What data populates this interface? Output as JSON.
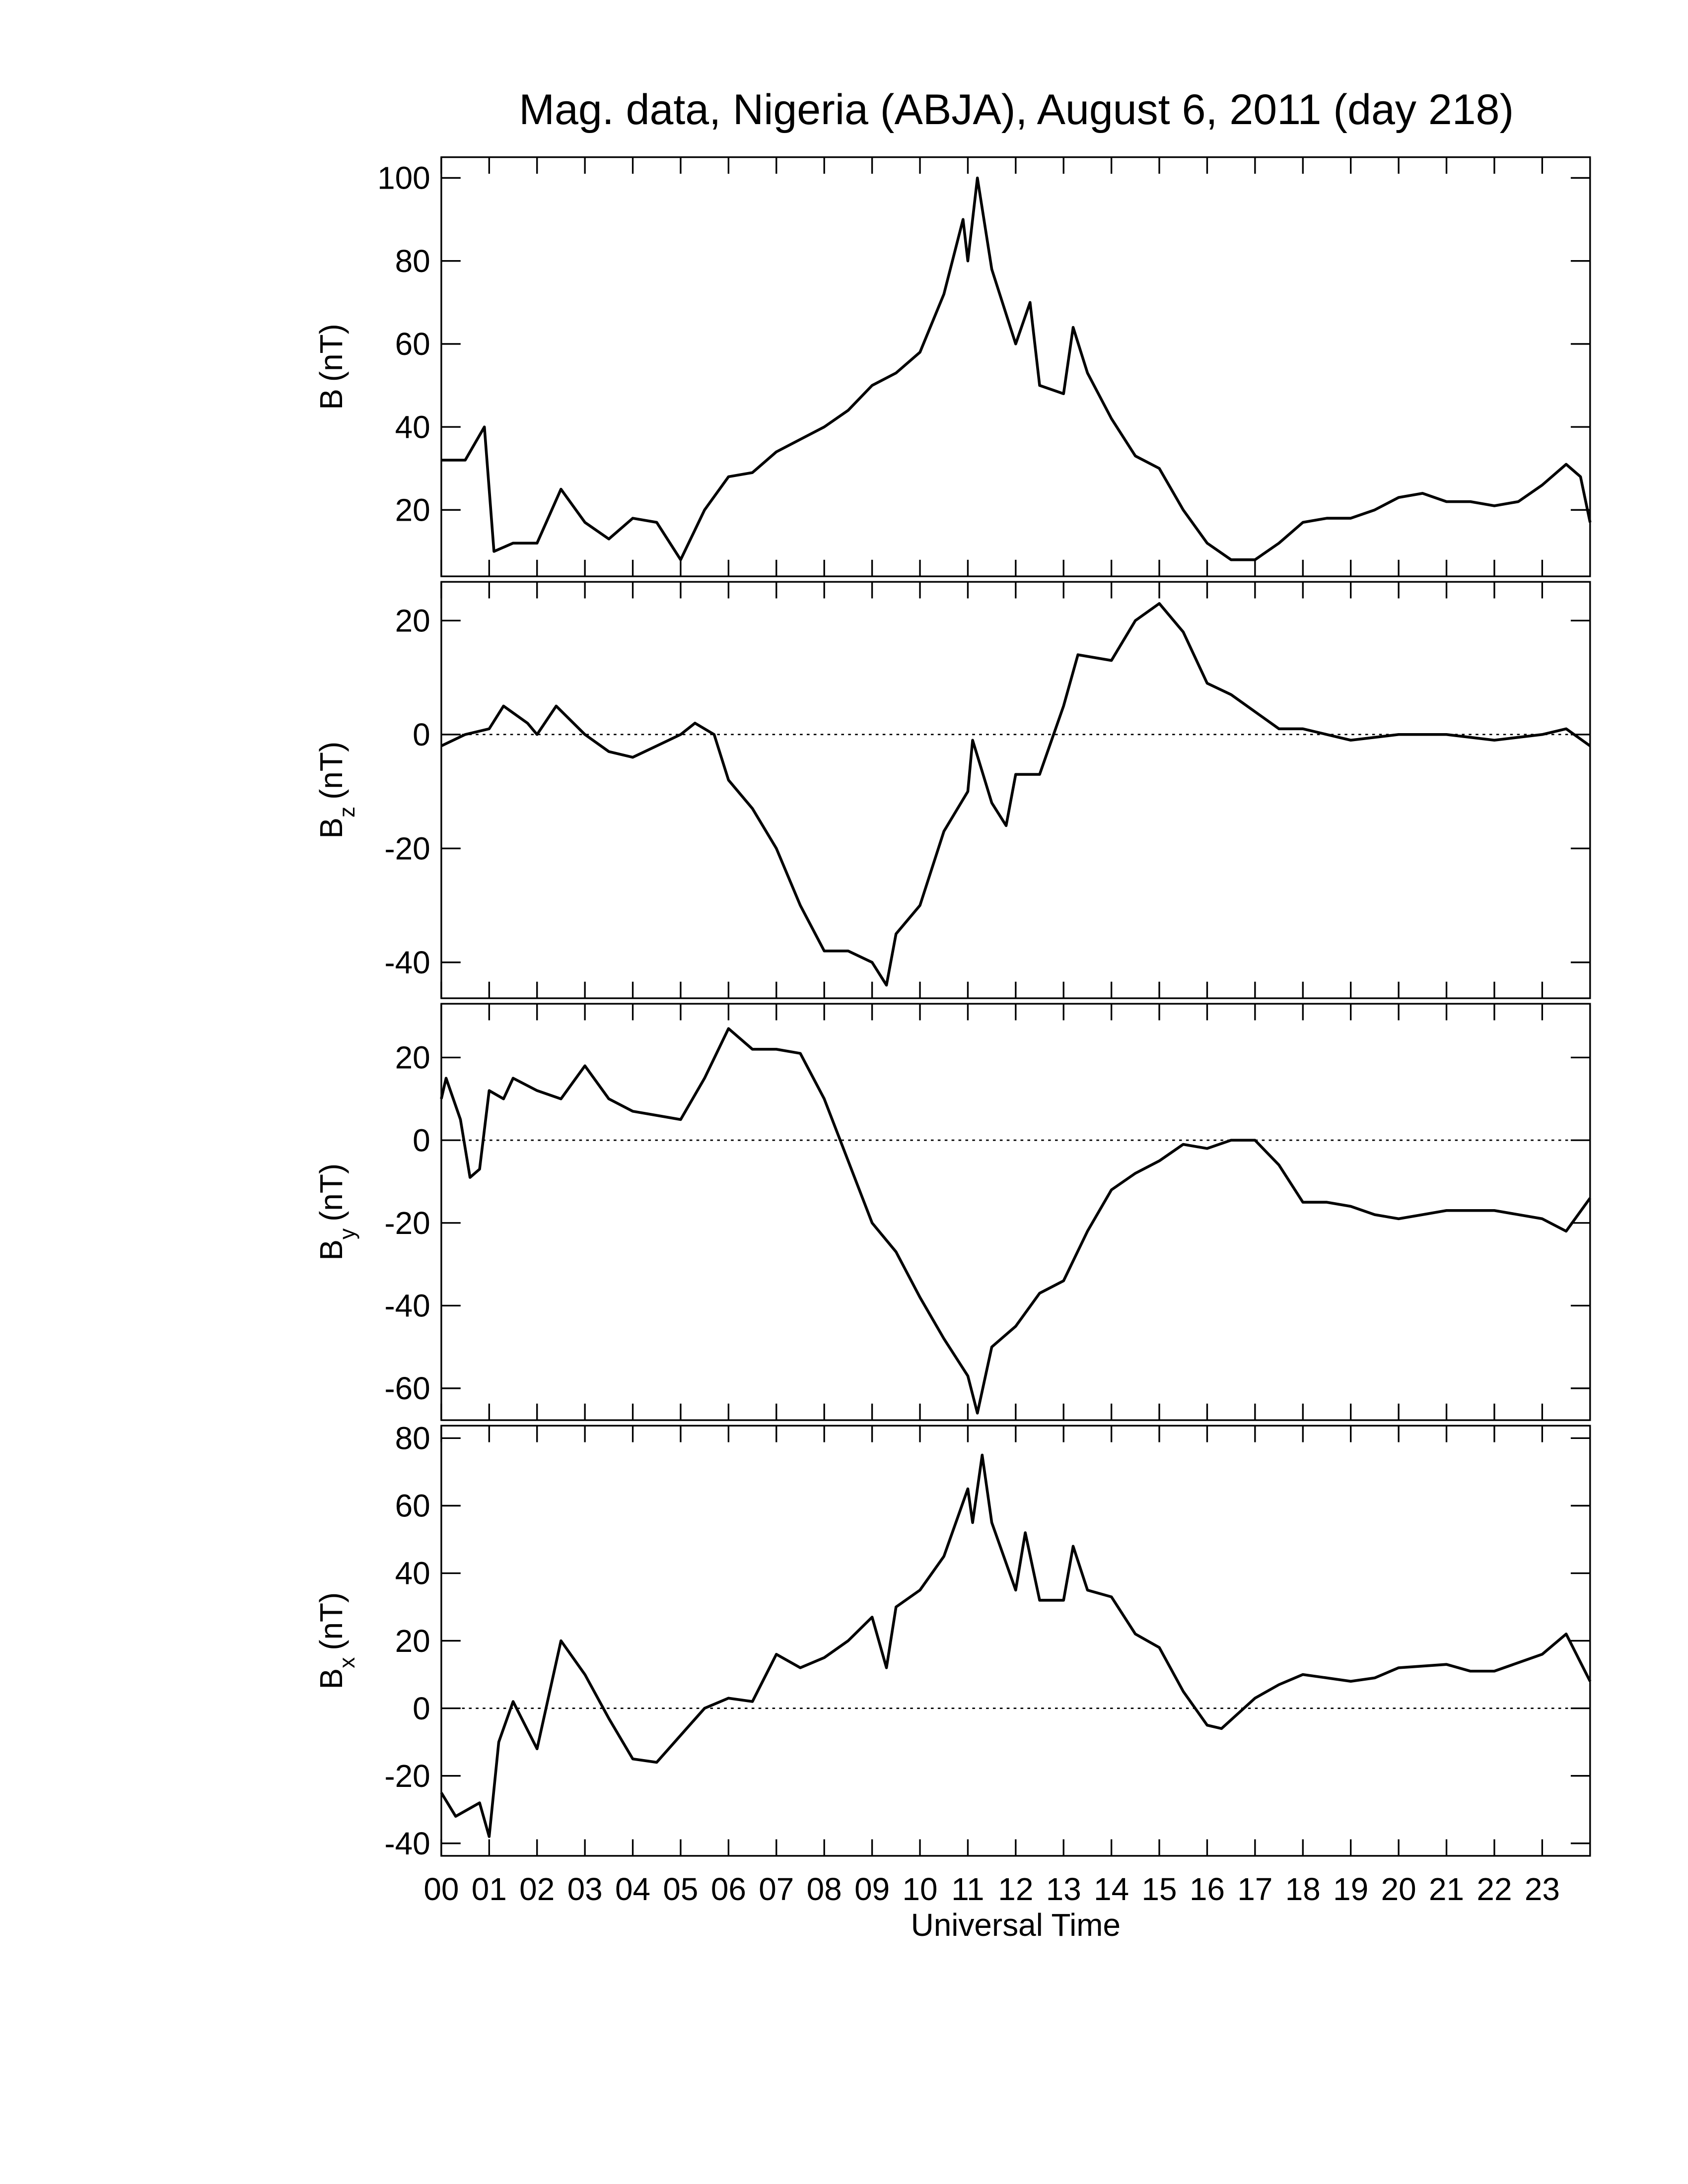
{
  "chart_data": [
    {
      "type": "line",
      "title": "Mag. data, Nigeria (ABJA), August 6, 2011 (day 218)",
      "ylabel": "B",
      "ylabel_unit": "(nT)",
      "xlim": [
        0,
        24
      ],
      "xticks": [
        0,
        1,
        2,
        3,
        4,
        5,
        6,
        7,
        8,
        9,
        10,
        11,
        12,
        13,
        14,
        15,
        16,
        17,
        18,
        19,
        20,
        21,
        22,
        23
      ],
      "ylim": [
        4,
        105
      ],
      "yticks": [
        20,
        40,
        60,
        80,
        100
      ],
      "zero_line": false,
      "color": "#000000",
      "x": [
        0,
        0.5,
        0.9,
        1.1,
        1.5,
        2,
        2.5,
        3,
        3.5,
        4,
        4.5,
        5,
        5.5,
        6,
        6.5,
        7,
        7.5,
        8,
        8.5,
        9,
        9.5,
        10,
        10.5,
        10.9,
        11,
        11.2,
        11.5,
        12,
        12.3,
        12.5,
        13,
        13.2,
        13.5,
        14,
        14.5,
        15,
        15.5,
        16,
        16.5,
        17,
        17.5,
        18,
        18.5,
        19,
        19.5,
        20,
        20.5,
        21,
        21.5,
        22,
        22.5,
        23,
        23.5,
        23.8,
        24
      ],
      "values": [
        32,
        32,
        40,
        10,
        12,
        12,
        25,
        17,
        13,
        18,
        17,
        8,
        20,
        28,
        29,
        34,
        37,
        40,
        44,
        50,
        53,
        58,
        72,
        90,
        80,
        100,
        78,
        60,
        70,
        50,
        48,
        64,
        53,
        42,
        33,
        30,
        20,
        12,
        8,
        8,
        12,
        17,
        18,
        18,
        20,
        23,
        24,
        22,
        22,
        21,
        22,
        26,
        31,
        28,
        17
      ]
    },
    {
      "type": "line",
      "ylabel": "B",
      "ylabel_sub": "z",
      "ylabel_unit": "(nT)",
      "xlim": [
        0,
        24
      ],
      "xticks": [
        0,
        1,
        2,
        3,
        4,
        5,
        6,
        7,
        8,
        9,
        10,
        11,
        12,
        13,
        14,
        15,
        16,
        17,
        18,
        19,
        20,
        21,
        22,
        23
      ],
      "ylim": [
        -46.3,
        26.8
      ],
      "yticks": [
        -40,
        -20,
        0,
        20
      ],
      "zero_line": true,
      "color": "#000000",
      "x": [
        0,
        0.5,
        1,
        1.3,
        1.8,
        2,
        2.4,
        3,
        3.5,
        4,
        4.5,
        5,
        5.3,
        5.7,
        6,
        6.5,
        7,
        7.5,
        8,
        8.5,
        9,
        9.3,
        9.5,
        10,
        10.5,
        11,
        11.1,
        11.5,
        11.8,
        12,
        12.5,
        13,
        13.3,
        14,
        14.5,
        15,
        15.5,
        16,
        16.5,
        17,
        17.5,
        18,
        18.5,
        19,
        20,
        21,
        22,
        23,
        23.5,
        24
      ],
      "values": [
        -2,
        0,
        1,
        5,
        2,
        0,
        5,
        0,
        -3,
        -4,
        -2,
        0,
        2,
        0,
        -8,
        -13,
        -20,
        -30,
        -38,
        -38,
        -40,
        -44,
        -35,
        -30,
        -17,
        -10,
        -1,
        -12,
        -16,
        -7,
        -7,
        5,
        14,
        13,
        20,
        23,
        18,
        9,
        7,
        4,
        1,
        1,
        0,
        -1,
        0,
        0,
        -1,
        0,
        1,
        -2
      ]
    },
    {
      "type": "line",
      "ylabel": "B",
      "ylabel_sub": "y",
      "ylabel_unit": "(nT)",
      "xlim": [
        0,
        24
      ],
      "xticks": [
        0,
        1,
        2,
        3,
        4,
        5,
        6,
        7,
        8,
        9,
        10,
        11,
        12,
        13,
        14,
        15,
        16,
        17,
        18,
        19,
        20,
        21,
        22,
        23
      ],
      "ylim": [
        -67.7,
        33
      ],
      "yticks": [
        -60,
        -40,
        -20,
        0,
        20
      ],
      "zero_line": true,
      "color": "#000000",
      "x": [
        0,
        0.1,
        0.4,
        0.6,
        0.8,
        1,
        1.3,
        1.5,
        2,
        2.5,
        3,
        3.5,
        4,
        4.5,
        5,
        5.5,
        6,
        6.5,
        7,
        7.5,
        8,
        8.5,
        9,
        9.5,
        10,
        10.5,
        11,
        11.2,
        11.5,
        12,
        12.5,
        13,
        13.5,
        14,
        14.5,
        15,
        15.5,
        16,
        16.5,
        17,
        17.5,
        18,
        18.5,
        19,
        19.5,
        20,
        20.5,
        21,
        22,
        23,
        23.5,
        24
      ],
      "values": [
        10,
        15,
        5,
        -9,
        -7,
        12,
        10,
        15,
        12,
        10,
        18,
        10,
        7,
        6,
        5,
        15,
        27,
        22,
        22,
        21,
        10,
        -5,
        -20,
        -27,
        -38,
        -48,
        -57,
        -66,
        -50,
        -45,
        -37,
        -34,
        -22,
        -12,
        -8,
        -5,
        -1,
        -2,
        0,
        0,
        -6,
        -15,
        -15,
        -16,
        -18,
        -19,
        -18,
        -17,
        -17,
        -19,
        -22,
        -14
      ]
    },
    {
      "type": "line",
      "ylabel": "B",
      "ylabel_sub": "x",
      "ylabel_unit": "(nT)",
      "xlabel": "Universal Time",
      "xlim": [
        0,
        24
      ],
      "xticks": [
        {
          "value": 0,
          "label": "00"
        },
        {
          "value": 1,
          "label": "01"
        },
        {
          "value": 2,
          "label": "02"
        },
        {
          "value": 3,
          "label": "03"
        },
        {
          "value": 4,
          "label": "04"
        },
        {
          "value": 5,
          "label": "05"
        },
        {
          "value": 6,
          "label": "06"
        },
        {
          "value": 7,
          "label": "07"
        },
        {
          "value": 8,
          "label": "08"
        },
        {
          "value": 9,
          "label": "09"
        },
        10,
        11,
        12,
        13,
        14,
        15,
        16,
        17,
        18,
        19,
        20,
        21,
        22,
        23
      ],
      "ylim": [
        -43.7,
        83.7
      ],
      "yticks": [
        -40,
        -20,
        0,
        20,
        40,
        60,
        80
      ],
      "zero_line": true,
      "color": "#000000",
      "x": [
        0,
        0.3,
        0.8,
        1,
        1.2,
        1.5,
        2,
        2.5,
        3,
        3.5,
        4,
        4.5,
        5,
        5.5,
        6,
        6.5,
        7,
        7.5,
        8,
        8.5,
        9,
        9.3,
        9.5,
        10,
        10.5,
        11,
        11.1,
        11.3,
        11.5,
        12,
        12.2,
        12.5,
        13,
        13.2,
        13.5,
        14,
        14.5,
        15,
        15.5,
        16,
        16.3,
        17,
        17.5,
        18,
        18.5,
        19,
        19.5,
        20,
        21,
        21.5,
        22,
        23,
        23.5,
        24
      ],
      "values": [
        -25,
        -32,
        -28,
        -38,
        -10,
        2,
        -12,
        20,
        10,
        -3,
        -15,
        -16,
        -8,
        0,
        3,
        2,
        16,
        12,
        15,
        20,
        27,
        12,
        30,
        35,
        45,
        65,
        55,
        75,
        55,
        35,
        52,
        32,
        32,
        48,
        35,
        33,
        22,
        18,
        5,
        -5,
        -6,
        3,
        7,
        10,
        9,
        8,
        9,
        12,
        13,
        11,
        11,
        16,
        22,
        8
      ]
    }
  ]
}
